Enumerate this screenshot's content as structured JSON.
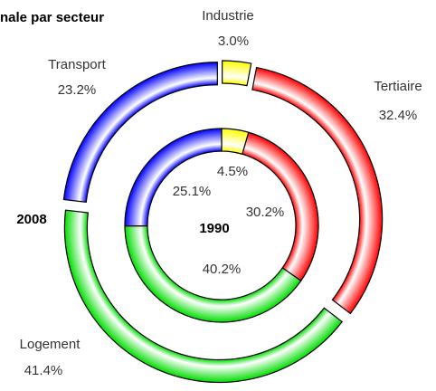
{
  "chart_data": {
    "type": "donut",
    "title": "nale par secteur",
    "categories": [
      "Industrie",
      "Tertiaire",
      "Logement",
      "Transport"
    ],
    "colors": [
      "#ffff00",
      "#ff0000",
      "#00dd00",
      "#0000ff"
    ],
    "series": [
      {
        "name": "2008",
        "values": [
          3.0,
          32.4,
          41.4,
          23.2
        ],
        "value_labels": [
          "3.0%",
          "32.4%",
          "41.4%",
          "23.2%"
        ]
      },
      {
        "name": "1990",
        "values": [
          4.5,
          30.2,
          40.2,
          25.1
        ],
        "value_labels": [
          "4.5%",
          "30.2%",
          "40.2%",
          "25.1%"
        ]
      }
    ]
  }
}
